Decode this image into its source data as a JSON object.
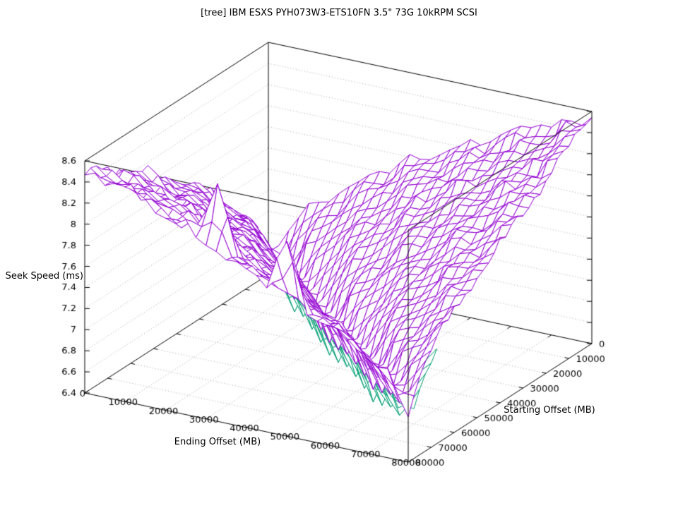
{
  "title": "[tree] IBM ESXS PYH073W3-ETS10FN 3.5\" 73G 10kRPM SCSI",
  "axes": {
    "z": {
      "label": "Seek Speed (ms)",
      "min": 6.4,
      "max": 8.6,
      "step": 0.2,
      "tick_labels": [
        "6.4",
        "6.6",
        "6.8",
        "7",
        "7.2",
        "7.4",
        "7.6",
        "7.8",
        "8",
        "8.2",
        "8.4",
        "8.6"
      ]
    },
    "x": {
      "label": "Ending Offset (MB)",
      "min": 0,
      "max": 80000,
      "step": 10000,
      "tick_labels": [
        "0",
        "10000",
        "20000",
        "30000",
        "40000",
        "50000",
        "60000",
        "70000",
        "80000"
      ]
    },
    "y": {
      "label": "Starting Offset (MB)",
      "min": 0,
      "max": 80000,
      "step": 10000,
      "tick_labels": [
        "0",
        "10000",
        "20000",
        "30000",
        "40000",
        "50000",
        "60000",
        "70000",
        "80000"
      ]
    }
  },
  "colors": {
    "surface1": "#9400d3",
    "surface2": "#009e73",
    "grid": "#a6a6a6",
    "box": "#000000",
    "background": "#ffffff",
    "text": "#000000"
  },
  "chart_data": {
    "type": "surface3d-wireframe",
    "title": "[tree] IBM ESXS PYH073W3-ETS10FN 3.5\" 73G 10kRPM SCSI",
    "xlabel": "Ending Offset (MB)",
    "ylabel": "Starting Offset (MB)",
    "zlabel": "Seek Speed (ms)",
    "xlim": [
      0,
      80000
    ],
    "ylim": [
      0,
      80000
    ],
    "zlim": [
      6.4,
      8.6
    ],
    "grid": true,
    "x": [
      0,
      5000,
      10000,
      15000,
      20000,
      25000,
      30000,
      35000,
      40000,
      45000,
      50000,
      55000,
      60000,
      65000,
      70000,
      75000,
      80000
    ],
    "y": [
      0,
      5000,
      10000,
      15000,
      20000,
      25000,
      30000,
      35000,
      40000,
      45000,
      50000,
      55000,
      60000,
      65000,
      70000,
      75000,
      80000
    ],
    "series": [
      {
        "name": "seek-surface-primary",
        "color": "#9400d3",
        "z_rows_y_by_x": [
          [
            6.53,
            6.85,
            7.14,
            7.23,
            7.39,
            7.55,
            7.61,
            7.81,
            7.84,
            7.96,
            8.08,
            8.1,
            8.27,
            8.29,
            8.39,
            8.5,
            8.51
          ],
          [
            6.94,
            6.48,
            6.89,
            7.12,
            7.21,
            7.45,
            7.51,
            7.65,
            7.79,
            7.82,
            8.01,
            8.04,
            8.15,
            8.25,
            8.27,
            8.44,
            8.45
          ],
          [
            7.09,
            6.92,
            6.47,
            6.95,
            7.08,
            7.26,
            7.43,
            7.49,
            7.7,
            7.74,
            7.86,
            7.99,
            8.02,
            8.2,
            8.21,
            8.31,
            8.42
          ],
          [
            7.21,
            7.14,
            6.88,
            6.51,
            6.93,
            7.07,
            7.32,
            7.39,
            7.54,
            7.69,
            7.73,
            7.92,
            7.94,
            8.06,
            8.18,
            8.19,
            8.36
          ],
          [
            7.37,
            7.25,
            7.13,
            6.86,
            6.57,
            6.89,
            7.12,
            7.31,
            7.38,
            7.6,
            7.65,
            7.77,
            7.9,
            7.93,
            8.12,
            8.13,
            8.23
          ],
          [
            7.55,
            7.35,
            7.31,
            7.09,
            6.91,
            6.56,
            6.89,
            7.18,
            7.27,
            7.43,
            7.59,
            7.63,
            7.83,
            7.86,
            7.97,
            8.1,
            8.11
          ],
          [
            7.69,
            7.5,
            7.4,
            7.3,
            7.08,
            6.98,
            6.53,
            6.94,
            7.17,
            7.26,
            7.49,
            7.55,
            7.68,
            7.82,
            7.84,
            8.03,
            8.05
          ],
          [
            7.75,
            7.67,
            7.49,
            7.46,
            7.26,
            7.13,
            6.97,
            6.53,
            7.01,
            7.14,
            7.32,
            7.48,
            7.54,
            7.74,
            7.78,
            7.89,
            8.01
          ],
          [
            7.81,
            7.8,
            7.63,
            7.54,
            7.45,
            7.25,
            7.19,
            6.94,
            6.59,
            7.01,
            7.13,
            7.38,
            7.45,
            7.59,
            7.73,
            7.77,
            7.95
          ],
          [
            7.93,
            7.85,
            7.79,
            7.62,
            7.6,
            7.41,
            7.3,
            7.19,
            6.94,
            6.66,
            6.98,
            7.19,
            7.38,
            7.44,
            7.66,
            7.7,
            7.82
          ],
          [
            8.08,
            7.91,
            7.91,
            7.75,
            7.67,
            7.59,
            7.4,
            7.37,
            7.15,
            7.0,
            6.67,
            6.98,
            7.27,
            7.35,
            7.5,
            7.65,
            7.69
          ],
          [
            8.19,
            8.03,
            7.96,
            7.9,
            7.73,
            7.72,
            7.55,
            7.45,
            7.36,
            7.15,
            7.07,
            6.65,
            7.05,
            7.27,
            7.35,
            7.57,
            7.62
          ],
          [
            8.22,
            8.17,
            8.02,
            8.01,
            7.85,
            7.78,
            7.71,
            7.54,
            7.52,
            7.33,
            7.22,
            7.08,
            6.66,
            7.13,
            7.25,
            7.41,
            7.57
          ],
          [
            8.27,
            8.27,
            8.13,
            8.06,
            8.0,
            7.84,
            7.84,
            7.67,
            7.59,
            7.51,
            7.33,
            7.29,
            7.06,
            6.73,
            7.14,
            7.26,
            7.49
          ],
          [
            8.37,
            8.31,
            8.26,
            8.11,
            8.12,
            7.95,
            7.88,
            7.83,
            7.66,
            7.66,
            7.48,
            7.39,
            7.3,
            7.07,
            6.82,
            7.12,
            7.33
          ],
          [
            8.5,
            8.35,
            8.36,
            8.21,
            8.15,
            8.1,
            8.52,
            7.94,
            7.79,
            7.72,
            7.65,
            7.48,
            7.46,
            7.28,
            7.14,
            6.84,
            7.14
          ],
          [
            8.48,
            8.45,
            8.39,
            8.34,
            8.19,
            8.2,
            8.05,
            7.98,
            7.93,
            7.78,
            8.3,
            7.62,
            7.54,
            7.47,
            7.29,
            7.23,
            6.83
          ]
        ]
      },
      {
        "name": "seek-surface-secondary",
        "color": "#009e73",
        "z_offset_from_primary": -0.12,
        "visible_regions": [
          {
            "type": "diagonal-valley-band",
            "halfwidth_cells": 2,
            "sum_range_cells": [
              6,
              31
            ]
          },
          {
            "type": "right-edge-sliver",
            "y_row": 0,
            "x_cell_range": [
              12,
              14
            ],
            "extra_offset": -0.08
          }
        ]
      }
    ],
    "mesh_render": {
      "upsample": 2,
      "noise_base": 0.015,
      "noise_slope": 0.055,
      "noise_seed": 11
    }
  }
}
